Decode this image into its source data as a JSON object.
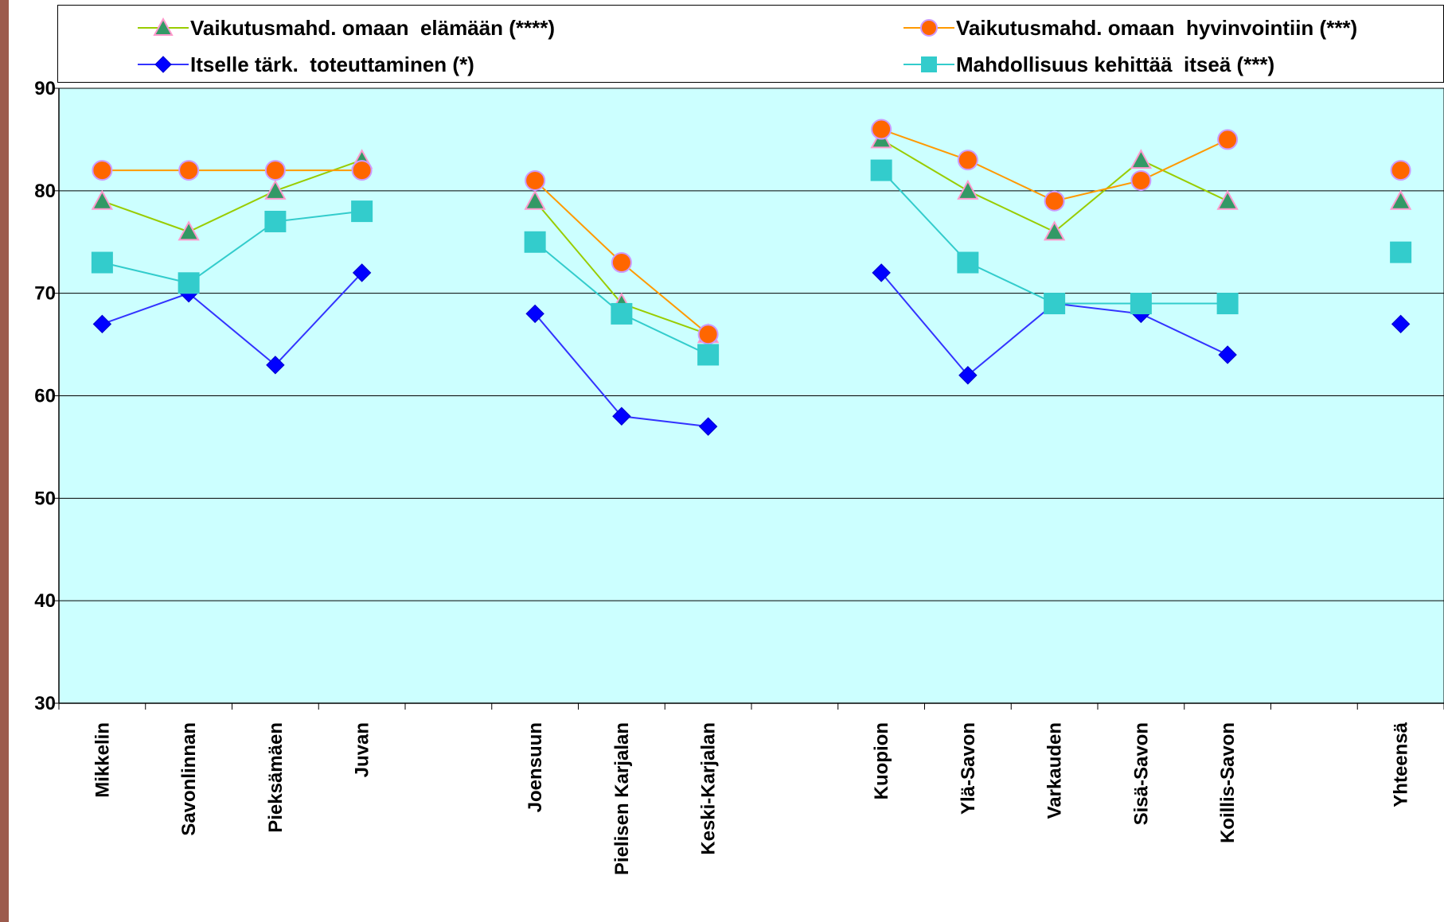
{
  "chart_data": {
    "type": "line",
    "title": "",
    "xlabel": "",
    "ylabel": "",
    "ylim": [
      30,
      90
    ],
    "yticks": [
      30,
      40,
      50,
      60,
      70,
      80,
      90
    ],
    "grid": true,
    "legend_position": "top",
    "plot_background": "#ccffff",
    "categories": [
      "Mikkelin",
      "Savonlinnan",
      "Pieksämäen",
      "Juvan",
      "",
      "Joensuun",
      "Pielisen Karjalan",
      "Keski-Karjalan",
      "",
      "Kuopion",
      "Ylä-Savon",
      "Varkauden",
      "Sisä-Savon",
      "Koillis-Savon",
      "",
      "Yhteensä"
    ],
    "series": [
      {
        "name": "Vaikutusmahd. omaan  elämään (****)",
        "color": "#99cc00",
        "marker": "triangle",
        "marker_fill": "#339966",
        "marker_stroke": "#ff99cc",
        "values": [
          79,
          76,
          80,
          83,
          null,
          79,
          69,
          66,
          null,
          85,
          80,
          76,
          83,
          79,
          null,
          79
        ]
      },
      {
        "name": "Vaikutusmahd. omaan  hyvinvointiin (***)",
        "color": "#ff9900",
        "marker": "circle",
        "marker_fill": "#ff6600",
        "marker_stroke": "#cc99ff",
        "values": [
          82,
          82,
          82,
          82,
          null,
          81,
          73,
          66,
          null,
          86,
          83,
          79,
          81,
          85,
          null,
          82
        ]
      },
      {
        "name": "Itselle tärk.  toteuttaminen (*)",
        "color": "#3333ff",
        "marker": "diamond",
        "marker_fill": "#0000ff",
        "marker_stroke": "#0000cc",
        "values": [
          67,
          70,
          63,
          72,
          null,
          68,
          58,
          57,
          null,
          72,
          62,
          69,
          68,
          64,
          null,
          67
        ]
      },
      {
        "name": "Mahdollisuus kehittää  itseä (***)",
        "color": "#33cccc",
        "marker": "square",
        "marker_fill": "#33cccc",
        "marker_stroke": "#33cccc",
        "values": [
          73,
          71,
          77,
          78,
          null,
          75,
          68,
          64,
          null,
          82,
          73,
          69,
          69,
          69,
          null,
          74
        ]
      }
    ]
  }
}
